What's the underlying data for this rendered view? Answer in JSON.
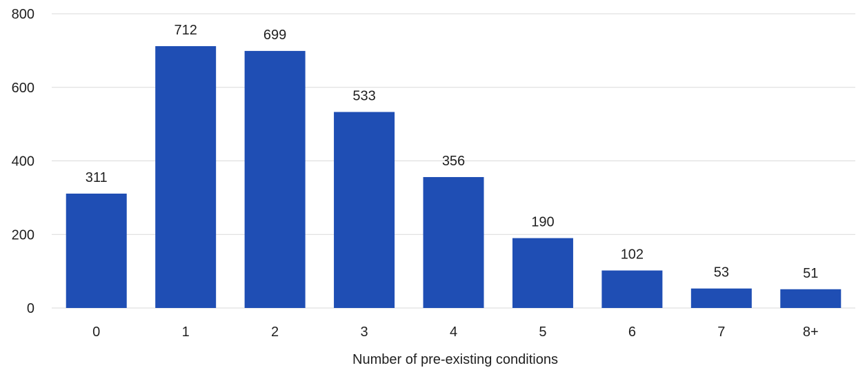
{
  "chart_data": {
    "type": "bar",
    "title": "",
    "xlabel": "Number of pre-existing conditions",
    "ylabel": "",
    "categories": [
      "0",
      "1",
      "2",
      "3",
      "4",
      "5",
      "6",
      "7",
      "8+"
    ],
    "values": [
      311,
      712,
      699,
      533,
      356,
      190,
      102,
      53,
      51
    ],
    "data_labels": [
      "311",
      "712",
      "699",
      "533",
      "356",
      "190",
      "102",
      "53",
      "51"
    ],
    "ylim": [
      0,
      800
    ],
    "yticks": [
      0,
      200,
      400,
      600,
      800
    ],
    "grid": true,
    "legend": "none",
    "bar_color": "#1f4eb4"
  }
}
